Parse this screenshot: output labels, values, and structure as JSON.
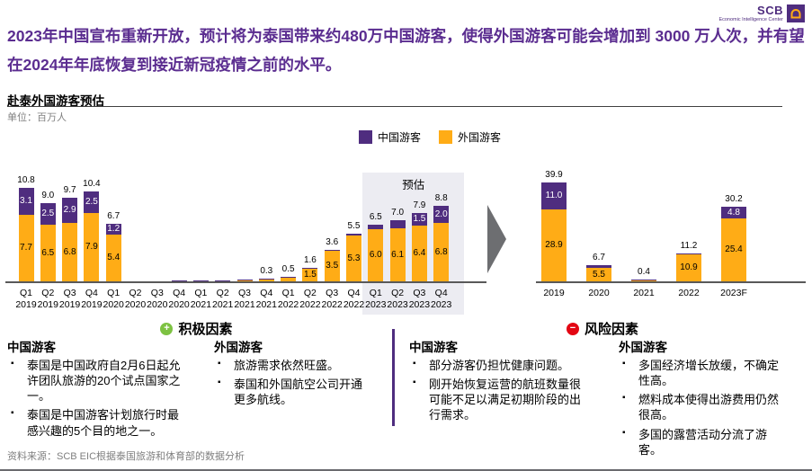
{
  "header": {
    "title": "2023年中国宣布重新开放，预计将为泰国带来约480万中国游客，使得外国游客可能会增加到 3000 万人次，并有望在2024年年底恢复到接近新冠疫情之前的水平。",
    "logo": {
      "brand": "SCB",
      "subtitle": "Economic Intelligence Center"
    }
  },
  "chart_section": {
    "heading": "赴泰外国游客预估",
    "unit": "单位：百万人",
    "forecast_label": "预估",
    "legend": [
      {
        "label": "中国游客",
        "color": "#4F2D7F"
      },
      {
        "label": "外国游客",
        "color": "#FFAC16"
      }
    ]
  },
  "colors": {
    "china": "#4F2D7F",
    "foreign": "#FFAC16",
    "axis": "#595959",
    "forecast_bg": "#ECECF2"
  },
  "chart_data": [
    {
      "type": "bar",
      "stacked": true,
      "title": "赴泰外国游客预估（季度）",
      "ylabel": "百万人",
      "legend_position": "top",
      "series_names": [
        "中国游客",
        "外国游客"
      ],
      "bars": [
        {
          "q": "Q1",
          "year": "2019",
          "china": 3.1,
          "foreign": 7.7,
          "total_label": "10.8",
          "china_label": "3.1",
          "foreign_label": "7.7",
          "forecast": false
        },
        {
          "q": "Q2",
          "year": "2019",
          "china": 2.5,
          "foreign": 6.5,
          "total_label": "9.0",
          "china_label": "2.5",
          "foreign_label": "6.5",
          "forecast": false
        },
        {
          "q": "Q3",
          "year": "2019",
          "china": 2.9,
          "foreign": 6.8,
          "total_label": "9.7",
          "china_label": "2.9",
          "foreign_label": "6.8",
          "forecast": false
        },
        {
          "q": "Q4",
          "year": "2019",
          "china": 2.5,
          "foreign": 7.9,
          "total_label": "10.4",
          "china_label": "2.5",
          "foreign_label": "7.9",
          "forecast": false
        },
        {
          "q": "Q1",
          "year": "2020",
          "china": 1.2,
          "foreign": 5.4,
          "total_label": "6.7",
          "china_label": "1.2",
          "foreign_label": "5.4",
          "forecast": false
        },
        {
          "q": "Q2",
          "year": "2020",
          "china": 0,
          "foreign": 0,
          "total_label": "",
          "china_label": "",
          "foreign_label": "",
          "forecast": false
        },
        {
          "q": "Q3",
          "year": "2020",
          "china": 0,
          "foreign": 0,
          "total_label": "",
          "china_label": "",
          "foreign_label": "",
          "forecast": false
        },
        {
          "q": "Q4",
          "year": "2020",
          "china": 0.1,
          "foreign": 0,
          "total_label": "",
          "china_label": "",
          "foreign_label": "",
          "forecast": false
        },
        {
          "q": "Q1",
          "year": "2021",
          "china": 0.1,
          "foreign": 0,
          "total_label": "",
          "china_label": "",
          "foreign_label": "",
          "forecast": false
        },
        {
          "q": "Q2",
          "year": "2021",
          "china": 0.1,
          "foreign": 0,
          "total_label": "",
          "china_label": "",
          "foreign_label": "",
          "forecast": false
        },
        {
          "q": "Q3",
          "year": "2021",
          "china": 0.1,
          "foreign": 0.1,
          "total_label": "",
          "china_label": "",
          "foreign_label": "",
          "forecast": false
        },
        {
          "q": "Q4",
          "year": "2021",
          "china": 0.05,
          "foreign": 0.25,
          "total_label": "0.3",
          "china_label": "",
          "foreign_label": "",
          "forecast": false
        },
        {
          "q": "Q1",
          "year": "2022",
          "china": 0.05,
          "foreign": 0.45,
          "total_label": "0.5",
          "china_label": "",
          "foreign_label": "",
          "forecast": false
        },
        {
          "q": "Q2",
          "year": "2022",
          "china": 0.1,
          "foreign": 1.5,
          "total_label": "1.6",
          "china_label": "",
          "foreign_label": "1.5",
          "forecast": false
        },
        {
          "q": "Q3",
          "year": "2022",
          "china": 0.1,
          "foreign": 3.5,
          "total_label": "3.6",
          "china_label": "",
          "foreign_label": "3.5",
          "forecast": false
        },
        {
          "q": "Q4",
          "year": "2022",
          "china": 0.2,
          "foreign": 5.3,
          "total_label": "5.5",
          "china_label": "",
          "foreign_label": "5.3",
          "forecast": false
        },
        {
          "q": "Q1",
          "year": "2023",
          "china": 0.5,
          "foreign": 6.0,
          "total_label": "6.5",
          "china_label": "",
          "foreign_label": "6.0",
          "forecast": true
        },
        {
          "q": "Q2",
          "year": "2023",
          "china": 0.9,
          "foreign": 6.1,
          "total_label": "7.0",
          "china_label": "",
          "foreign_label": "6.1",
          "forecast": true
        },
        {
          "q": "Q3",
          "year": "2023",
          "china": 1.5,
          "foreign": 6.4,
          "total_label": "7.9",
          "china_label": "1.5",
          "foreign_label": "6.4",
          "forecast": true
        },
        {
          "q": "Q4",
          "year": "2023",
          "china": 2.0,
          "foreign": 6.8,
          "total_label": "8.8",
          "china_label": "2.0",
          "foreign_label": "6.8",
          "forecast": true
        }
      ]
    },
    {
      "type": "bar",
      "stacked": true,
      "title": "赴泰外国游客预估（年度）",
      "ylabel": "百万人",
      "series_names": [
        "中国游客",
        "外国游客"
      ],
      "bars": [
        {
          "year": "2019",
          "china": 11.0,
          "foreign": 28.9,
          "total_label": "39.9",
          "china_label": "11.0",
          "foreign_label": "28.9",
          "forecast": false
        },
        {
          "year": "2020",
          "china": 1.2,
          "foreign": 5.5,
          "total_label": "6.7",
          "china_label": "",
          "foreign_label": "5.5",
          "forecast": false
        },
        {
          "year": "2021",
          "china": 0.05,
          "foreign": 0.35,
          "total_label": "0.4",
          "china_label": "",
          "foreign_label": "",
          "forecast": false
        },
        {
          "year": "2022",
          "china": 0.3,
          "foreign": 10.9,
          "total_label": "11.2",
          "china_label": "",
          "foreign_label": "10.9",
          "forecast": false
        },
        {
          "year": "2023F",
          "china": 4.8,
          "foreign": 25.4,
          "total_label": "30.2",
          "china_label": "4.8",
          "foreign_label": "25.4",
          "forecast": true
        }
      ]
    }
  ],
  "factors": {
    "positive": {
      "title": "积极因素",
      "icon": "plus-icon",
      "china": {
        "title": "中国游客",
        "bullets": [
          "泰国是中国政府自2月6日起允许团队旅游的20个试点国家之一。",
          "泰国是中国游客计划旅行时最感兴趣的5个目的地之一。"
        ]
      },
      "foreign": {
        "title": "外国游客",
        "bullets": [
          "旅游需求依然旺盛。",
          "泰国和外国航空公司开通更多航线。"
        ]
      }
    },
    "risk": {
      "title": "风险因素",
      "icon": "minus-icon",
      "china": {
        "title": "中国游客",
        "bullets": [
          "部分游客仍担忧健康问题。",
          "刚开始恢复运营的航班数量很可能不足以满足初期阶段的出行需求。"
        ]
      },
      "foreign": {
        "title": "外国游客",
        "bullets": [
          "多国经济增长放缓，不确定性高。",
          "燃料成本使得出游费用仍然很高。",
          "多国的露营活动分流了游客。"
        ]
      }
    }
  },
  "footer": {
    "source": "资料来源：SCB EIC根据泰国旅游和体育部的数据分析"
  }
}
